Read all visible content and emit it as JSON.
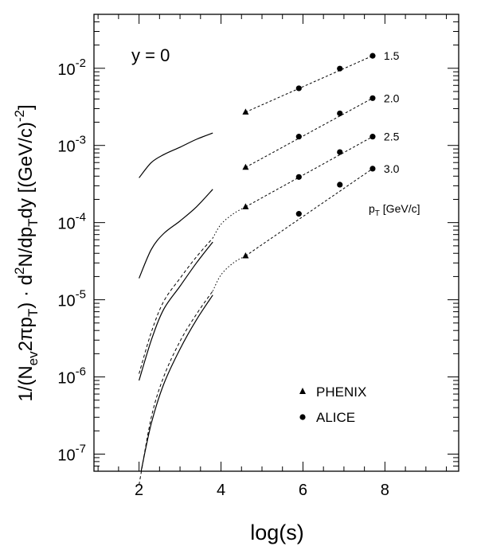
{
  "chart_data": {
    "type": "line",
    "annotation": "y = 0",
    "xlabel": "log(s)",
    "ylabel": {
      "prefix": "1/(N",
      "sub_ev": "ev",
      "mid1": "2πp",
      "sub_T1": "T",
      "mid2": ") · d",
      "sup_2": "2",
      "mid3": "N/dp",
      "sub_T2": "T",
      "mid4": "dy [(GeV/c)",
      "sup_m2": "-2",
      "suffix": "]"
    },
    "xlim": [
      0.9,
      9.8
    ],
    "ylim": [
      6e-08,
      0.05
    ],
    "yscale": "log",
    "x_ticks": [
      2,
      4,
      6,
      8
    ],
    "x_tick_labels": [
      "2",
      "4",
      "6",
      "8"
    ],
    "y_ticks": [
      1e-07,
      1e-06,
      1e-05,
      0.0001,
      0.001,
      0.01
    ],
    "y_tick_labels": [
      {
        "base": "10",
        "exp": "-7"
      },
      {
        "base": "10",
        "exp": "-6"
      },
      {
        "base": "10",
        "exp": "-5"
      },
      {
        "base": "10",
        "exp": "-4"
      },
      {
        "base": "10",
        "exp": "-3"
      },
      {
        "base": "10",
        "exp": "-2"
      }
    ],
    "pt_axis_label": {
      "main": "p",
      "sub": "T",
      "rest": " [GeV/c]"
    },
    "legend": [
      {
        "marker": "triangle",
        "label": "PHENIX"
      },
      {
        "marker": "circle",
        "label": "ALICE"
      }
    ],
    "series": [
      {
        "name": "1.5",
        "solid": [
          [
            2.0,
            0.00038
          ],
          [
            2.3,
            0.0006
          ],
          [
            2.6,
            0.00076
          ],
          [
            3.0,
            0.00095
          ],
          [
            3.4,
            0.0012
          ],
          [
            3.8,
            0.00145
          ]
        ],
        "phenix": [
          [
            4.6,
            0.0027
          ]
        ],
        "alice": [
          [
            5.9,
            0.0055
          ],
          [
            6.9,
            0.0099
          ],
          [
            7.7,
            0.0145
          ]
        ],
        "dashed_fit": [
          [
            4.6,
            0.0027
          ],
          [
            7.7,
            0.0145
          ]
        ]
      },
      {
        "name": "2.0",
        "solid": [
          [
            2.0,
            1.9e-05
          ],
          [
            2.3,
            4.5e-05
          ],
          [
            2.6,
            7.2e-05
          ],
          [
            3.0,
            0.000105
          ],
          [
            3.4,
            0.00016
          ],
          [
            3.8,
            0.00027
          ]
        ],
        "phenix": [
          [
            4.6,
            0.00052
          ]
        ],
        "alice": [
          [
            5.9,
            0.0013
          ],
          [
            6.9,
            0.0026
          ],
          [
            7.7,
            0.0041
          ]
        ],
        "dashed_fit": [
          [
            4.6,
            0.00052
          ],
          [
            7.7,
            0.0041
          ]
        ]
      },
      {
        "name": "2.5",
        "solid": [
          [
            2.0,
            9e-07
          ],
          [
            2.3,
            3e-06
          ],
          [
            2.6,
            7.5e-06
          ],
          [
            3.0,
            1.5e-05
          ],
          [
            3.4,
            3e-05
          ],
          [
            3.8,
            5.6e-05
          ]
        ],
        "dashed": [
          [
            2.0,
            1.1e-06
          ],
          [
            2.3,
            3.8e-06
          ],
          [
            2.6,
            9.5e-06
          ],
          [
            3.0,
            1.9e-05
          ],
          [
            3.4,
            3.6e-05
          ],
          [
            3.8,
            6.3e-05
          ]
        ],
        "dotted": [
          [
            3.8,
            6.3e-05
          ],
          [
            4.0,
            9.5e-05
          ],
          [
            4.3,
            0.00013
          ],
          [
            4.6,
            0.00016
          ]
        ],
        "phenix": [
          [
            4.6,
            0.00016
          ]
        ],
        "alice": [
          [
            5.9,
            0.00039
          ],
          [
            6.9,
            0.00082
          ],
          [
            7.7,
            0.0013
          ]
        ],
        "dashed_fit": [
          [
            4.6,
            0.00016
          ],
          [
            7.7,
            0.0013
          ]
        ]
      },
      {
        "name": "3.0",
        "solid": [
          [
            2.05,
            6e-08
          ],
          [
            2.3,
            2.5e-07
          ],
          [
            2.6,
            8e-07
          ],
          [
            3.0,
            2.3e-06
          ],
          [
            3.4,
            5.5e-06
          ],
          [
            3.8,
            1.15e-05
          ]
        ],
        "dashed": [
          [
            2.0,
            4e-08
          ],
          [
            2.3,
            3e-07
          ],
          [
            2.6,
            1e-06
          ],
          [
            3.0,
            2.9e-06
          ],
          [
            3.4,
            6.5e-06
          ],
          [
            3.8,
            1.3e-05
          ]
        ],
        "dotted": [
          [
            3.8,
            1.3e-05
          ],
          [
            4.0,
            2.1e-05
          ],
          [
            4.3,
            3e-05
          ],
          [
            4.6,
            3.7e-05
          ]
        ],
        "phenix": [
          [
            4.6,
            3.7e-05
          ]
        ],
        "alice": [
          [
            5.9,
            0.00013
          ],
          [
            6.9,
            0.00031
          ],
          [
            7.7,
            0.0005
          ]
        ],
        "dashed_fit": [
          [
            4.6,
            3.7e-05
          ],
          [
            7.7,
            0.0005
          ]
        ]
      }
    ]
  }
}
